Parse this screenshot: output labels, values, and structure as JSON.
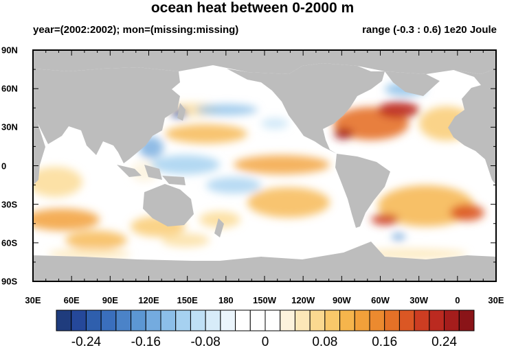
{
  "title": "ocean heat between 0-2000 m",
  "subtitle_left": "year=(2002:2002); mon=(missing:missing)",
  "subtitle_right": "range (-0.3 : 0.6) 1e20 Joule",
  "lat_labels": [
    "90N",
    "60N",
    "30N",
    "0",
    "30S",
    "60S",
    "90S"
  ],
  "lon_labels": [
    "30E",
    "60E",
    "90E",
    "120E",
    "150E",
    "180",
    "150W",
    "120W",
    "90W",
    "60W",
    "30W",
    "0",
    "30E"
  ],
  "colorbar": {
    "tick_labels": [
      "-0.24",
      "-0.16",
      "-0.08",
      "0",
      "0.08",
      "0.16",
      "0.24"
    ],
    "colors": [
      "#1f3c7d",
      "#25489a",
      "#2f5fad",
      "#3a6fbd",
      "#4b83c8",
      "#5c97d3",
      "#74abdf",
      "#8cbfe9",
      "#a6d1f0",
      "#bfe0f5",
      "#d7ecf9",
      "#ebf5fc",
      "#ffffff",
      "#ffffff",
      "#ffffff",
      "#fdf3dc",
      "#fce7b8",
      "#fbd990",
      "#f9c86a",
      "#f6b54c",
      "#f2a03a",
      "#ec8a2f",
      "#e57127",
      "#db5724",
      "#cd3d22",
      "#bb2a20",
      "#a51d1c",
      "#8a1418"
    ]
  },
  "colors": {
    "land": "#bdbdbd",
    "ocean": "#ffffff"
  }
}
